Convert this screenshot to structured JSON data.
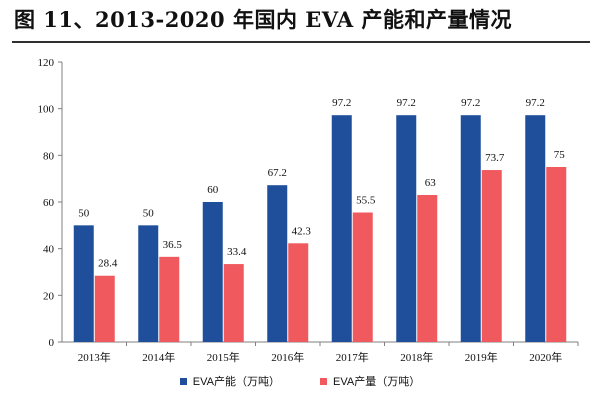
{
  "title": "图 11、2013-2020 年国内 EVA 产能和产量情况",
  "chart_data": {
    "type": "bar",
    "title": "图 11、2013-2020 年国内 EVA 产能和产量情况",
    "categories": [
      "2013年",
      "2014年",
      "2015年",
      "2016年",
      "2017年",
      "2018年",
      "2019年",
      "2020年"
    ],
    "series": [
      {
        "name": "EVA产能（万吨）",
        "color": "#1f4e9b",
        "values": [
          50,
          50,
          60,
          67.2,
          97.2,
          97.2,
          97.2,
          97.2
        ],
        "labels": [
          "50",
          "50",
          "60",
          "67.2",
          "97.2",
          "97.2",
          "97.2",
          "97.2"
        ]
      },
      {
        "name": "EVA产量（万吨）",
        "color": "#f05a5f",
        "values": [
          28.4,
          36.5,
          33.4,
          42.3,
          55.5,
          63,
          73.7,
          75
        ],
        "labels": [
          "28.4",
          "36.5",
          "33.4",
          "42.3",
          "55.5",
          "63",
          "73.7",
          "75"
        ]
      }
    ],
    "xlabel": "",
    "ylabel": "",
    "ylim": [
      0,
      120
    ],
    "yticks": [
      "0",
      "20",
      "40",
      "60",
      "80",
      "100",
      "120"
    ],
    "grid": false,
    "legend_position": "bottom"
  }
}
